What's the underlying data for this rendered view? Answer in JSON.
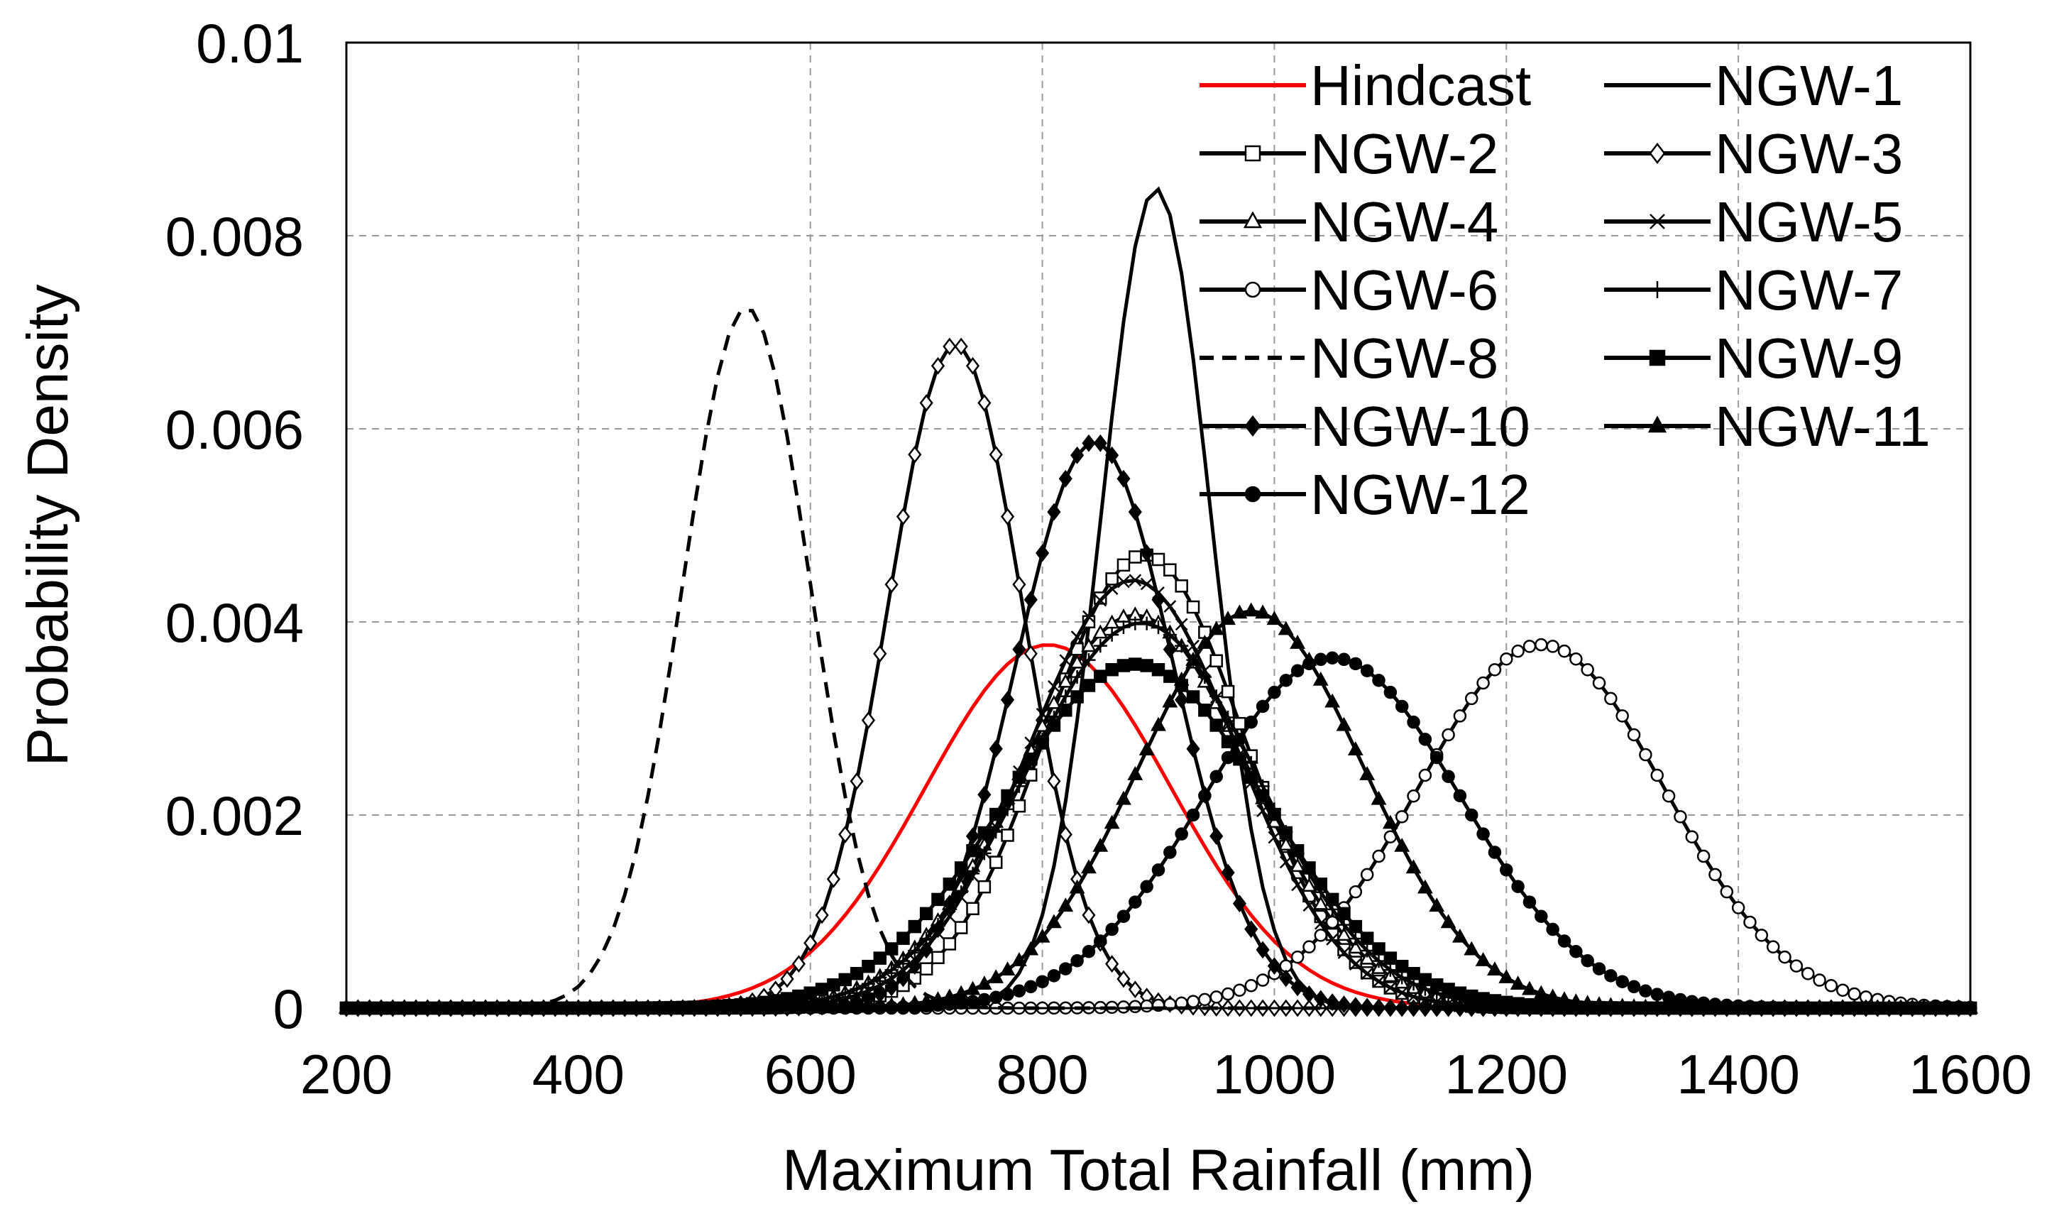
{
  "chart_data": {
    "type": "line",
    "title": "",
    "xlabel": "Maximum Total Rainfall (mm)",
    "ylabel": "Probability Density",
    "xlim": [
      200,
      1600
    ],
    "ylim": [
      0,
      0.01
    ],
    "xticks": [
      200,
      400,
      600,
      800,
      1000,
      1200,
      1400,
      1600
    ],
    "xtick_labels": [
      "200",
      "400",
      "600",
      "800",
      "1000",
      "1200",
      "1400",
      "1600"
    ],
    "yticks": [
      0,
      0.002,
      0.004,
      0.006,
      0.008,
      0.01
    ],
    "ytick_labels": [
      "0",
      "0.002",
      "0.004",
      "0.006",
      "0.008",
      "0.01"
    ],
    "grid": true,
    "legend_position": "top-right",
    "x_sample_step_mm": 10,
    "series": [
      {
        "name": "Hindcast",
        "color": "#ff0000",
        "dash": "solid",
        "marker": "none",
        "mean": 805,
        "sd": 106
      },
      {
        "name": "NGW-1",
        "color": "#000000",
        "dash": "solid",
        "marker": "none",
        "mean": 898,
        "sd": 47
      },
      {
        "name": "NGW-2",
        "color": "#000000",
        "dash": "solid",
        "marker": "square",
        "mean": 888,
        "sd": 85
      },
      {
        "name": "NGW-3",
        "color": "#000000",
        "dash": "solid",
        "marker": "diamond",
        "mean": 725,
        "sd": 58
      },
      {
        "name": "NGW-4",
        "color": "#000000",
        "dash": "solid",
        "marker": "triangle",
        "mean": 880,
        "sd": 98
      },
      {
        "name": "NGW-5",
        "color": "#000000",
        "dash": "solid",
        "marker": "x",
        "mean": 878,
        "sd": 90
      },
      {
        "name": "NGW-6",
        "color": "#000000",
        "dash": "solid",
        "marker": "circle",
        "mean": 1230,
        "sd": 106
      },
      {
        "name": "NGW-7",
        "color": "#000000",
        "dash": "solid",
        "marker": "plus",
        "mean": 885,
        "sd": 100
      },
      {
        "name": "NGW-8",
        "color": "#000000",
        "dash": "dashed",
        "marker": "none",
        "mean": 545,
        "sd": 55
      },
      {
        "name": "NGW-9",
        "color": "#000000",
        "dash": "solid",
        "marker": "filled-square",
        "mean": 880,
        "sd": 112
      },
      {
        "name": "NGW-10",
        "color": "#000000",
        "dash": "solid",
        "marker": "filled-diamond",
        "mean": 845,
        "sd": 68
      },
      {
        "name": "NGW-11",
        "color": "#000000",
        "dash": "solid",
        "marker": "filled-triangle",
        "mean": 980,
        "sd": 97
      },
      {
        "name": "NGW-12",
        "color": "#000000",
        "dash": "solid",
        "marker": "filled-circle",
        "mean": 1050,
        "sd": 110
      }
    ]
  }
}
